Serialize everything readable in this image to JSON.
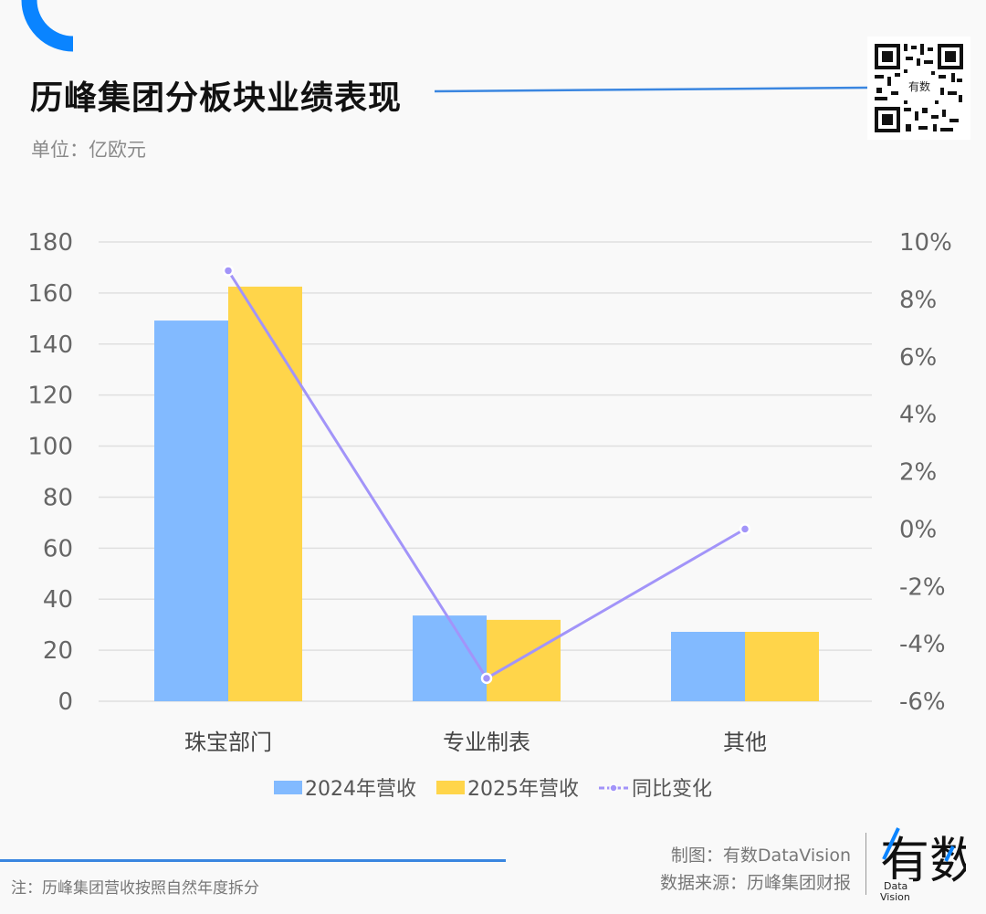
{
  "header": {
    "title": "历峰集团分板块业绩表现",
    "unit": "单位：亿欧元",
    "qr_logo_text": "有数"
  },
  "colors": {
    "accent_blue": "#0a84ff",
    "series_2024": "#82baff",
    "series_2025": "#ffd54a",
    "series_yoy": "#a294f9",
    "grid": "#e0e0e0",
    "footer_line": "#3a86e0"
  },
  "chart_data": {
    "type": "bar",
    "title": "历峰集团分板块业绩表现",
    "subtitle": "单位：亿欧元",
    "categories": [
      "珠宝部门",
      "专业制表",
      "其他"
    ],
    "series": [
      {
        "name": "2024年营收",
        "type": "bar",
        "axis": "left",
        "values": [
          149.2,
          33.6,
          27.2
        ]
      },
      {
        "name": "2025年营收",
        "type": "bar",
        "axis": "left",
        "values": [
          162.5,
          31.9,
          27.2
        ]
      },
      {
        "name": "同比变化",
        "type": "line",
        "axis": "right",
        "unit": "%",
        "values": [
          9.0,
          -5.2,
          0.0
        ]
      }
    ],
    "xlabel": "",
    "ylabel": "",
    "ylim": [
      0,
      180
    ],
    "y_ticks": [
      "0",
      "20",
      "40",
      "60",
      "80",
      "100",
      "120",
      "140",
      "160",
      "180"
    ],
    "y2lim": [
      -6,
      10
    ],
    "y2_ticks": [
      "-6%",
      "-4%",
      "-2%",
      "0%",
      "2%",
      "4%",
      "6%",
      "8%",
      "10%"
    ],
    "grid": true,
    "legend_position": "bottom"
  },
  "legend": {
    "items": [
      {
        "label": "2024年营收"
      },
      {
        "label": "2025年营收"
      },
      {
        "label": "同比变化"
      }
    ]
  },
  "footer": {
    "note": "注：历峰集团营收按照自然年度拆分",
    "credit_line1": "制图：有数DataVision",
    "credit_line2": "数据来源：历峰集团财报",
    "brand_cn": "有数",
    "brand_en_1": "Data",
    "brand_en_2": "Vision"
  }
}
